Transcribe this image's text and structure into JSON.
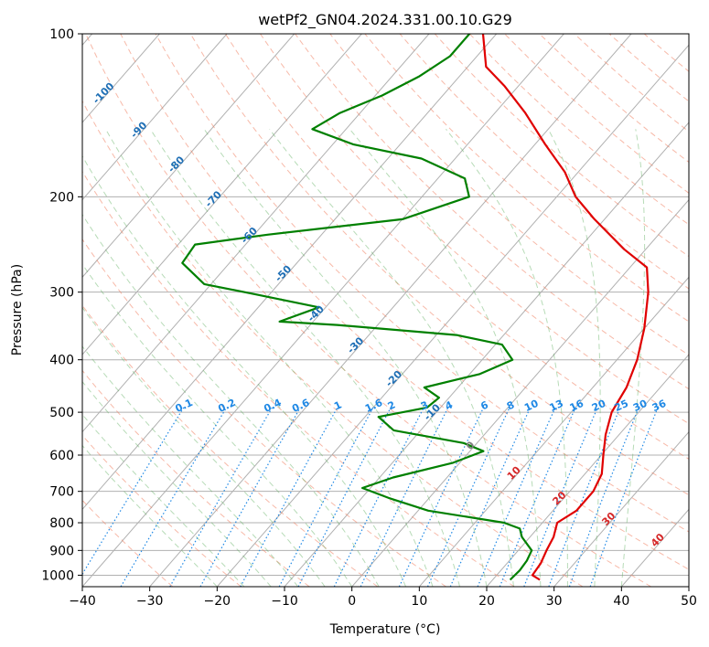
{
  "chart_data": {
    "type": "line",
    "title": "wetPf2_GN04.2024.331.00.10.G29",
    "xlabel": "Temperature (°C)",
    "ylabel": "Pressure (hPa)",
    "xlim": [
      -40,
      50
    ],
    "ylim": [
      1050,
      100
    ],
    "y_scale": "log",
    "x_ticks": [
      -40,
      -30,
      -20,
      -10,
      0,
      10,
      20,
      30,
      40,
      50
    ],
    "y_ticks": [
      100,
      200,
      300,
      400,
      500,
      600,
      700,
      800,
      900,
      1000
    ],
    "skew": "skew-T log-p",
    "grid": true,
    "series": [
      {
        "role": "temperature",
        "color": "#e00000",
        "points": [
          [
            27.0,
            1020
          ],
          [
            25.3,
            1000
          ],
          [
            25.0,
            950
          ],
          [
            24.2,
            900
          ],
          [
            23.5,
            850
          ],
          [
            22.2,
            800
          ],
          [
            23.5,
            760
          ],
          [
            23.5,
            700
          ],
          [
            22.5,
            650
          ],
          [
            20.3,
            600
          ],
          [
            18.0,
            550
          ],
          [
            16.0,
            500
          ],
          [
            15.0,
            450
          ],
          [
            13.0,
            400
          ],
          [
            10.0,
            350
          ],
          [
            5.9,
            300
          ],
          [
            2.5,
            270
          ],
          [
            -3.2,
            250
          ],
          [
            -11.5,
            220
          ],
          [
            -17.2,
            200
          ],
          [
            -22.0,
            180
          ],
          [
            -28.5,
            160
          ],
          [
            -35.5,
            140
          ],
          [
            -42.0,
            125
          ],
          [
            -47.3,
            115
          ],
          [
            -52.0,
            100
          ]
        ]
      },
      {
        "role": "dewpoint",
        "color": "#008000",
        "points": [
          [
            22.6,
            1020
          ],
          [
            22.8,
            980
          ],
          [
            22.6,
            940
          ],
          [
            22.0,
            900
          ],
          [
            18.8,
            850
          ],
          [
            17.4,
            820
          ],
          [
            14.3,
            800
          ],
          [
            1.5,
            760
          ],
          [
            -6.0,
            720
          ],
          [
            -11.2,
            690
          ],
          [
            -8.0,
            660
          ],
          [
            -1.0,
            620
          ],
          [
            2.0,
            590
          ],
          [
            -2.0,
            570
          ],
          [
            -14.0,
            540
          ],
          [
            -18.0,
            510
          ],
          [
            -12.0,
            490
          ],
          [
            -11.5,
            470
          ],
          [
            -15.0,
            450
          ],
          [
            -8.5,
            425
          ],
          [
            -5.5,
            400
          ],
          [
            -9.0,
            375
          ],
          [
            -17.0,
            360
          ],
          [
            -36.0,
            345
          ],
          [
            -45.0,
            340
          ],
          [
            -41.0,
            320
          ],
          [
            -52.0,
            303
          ],
          [
            -61.0,
            290
          ],
          [
            -67.0,
            265
          ],
          [
            -67.5,
            245
          ],
          [
            -58.0,
            235
          ],
          [
            -40.0,
            220
          ],
          [
            -33.0,
            200
          ],
          [
            -36.0,
            185
          ],
          [
            -45.0,
            170
          ],
          [
            -57.0,
            160
          ],
          [
            -65.0,
            150
          ],
          [
            -63.0,
            140
          ],
          [
            -59.0,
            130
          ],
          [
            -56.0,
            120
          ],
          [
            -54.0,
            110
          ],
          [
            -54.0,
            100
          ]
        ]
      }
    ],
    "isotherm_labels": [
      "-100",
      "-90",
      "-80",
      "-70",
      "-60",
      "-50",
      "-40",
      "-30",
      "-20",
      "-10",
      "0",
      "10",
      "20",
      "30",
      "40"
    ],
    "mixing_ratio_labels": [
      "0.1",
      "0.2",
      "0.4",
      "0.6",
      "1",
      "1.6",
      "2",
      "3",
      "4",
      "6",
      "8",
      "10",
      "13",
      "16",
      "20",
      "25",
      "30",
      "36"
    ],
    "colors": {
      "isotherm_cold": "#1f6fb5",
      "isotherm_zero": "#7f7f7f",
      "isotherm_warm": "#d62728",
      "mixing_ratio": "#1e88e5",
      "dry_adiabat": "#f08060",
      "moist_adiabat": "#60b060",
      "grid": "#b0b0b0"
    }
  }
}
